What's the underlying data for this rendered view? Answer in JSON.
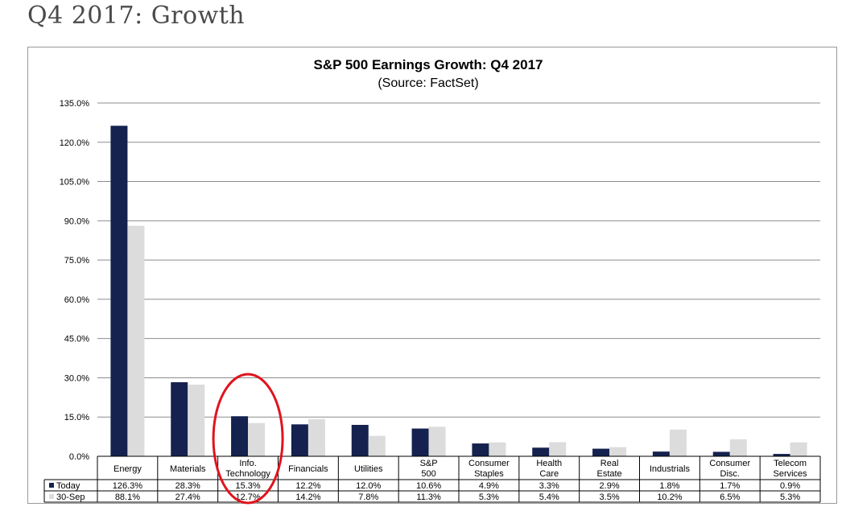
{
  "page": {
    "heading": "Q4 2017: Growth"
  },
  "chart_data": {
    "type": "bar",
    "title": "S&P 500 Earnings Growth: Q4 2017",
    "subtitle": "(Source: FactSet)",
    "categories": [
      "Energy",
      "Materials",
      "Info. Technology",
      "Financials",
      "Utilities",
      "S&P 500",
      "Consumer Staples",
      "Health Care",
      "Real Estate",
      "Industrials",
      "Consumer Disc.",
      "Telecom Services"
    ],
    "y_ticks": [
      "0.0%",
      "15.0%",
      "30.0%",
      "45.0%",
      "60.0%",
      "75.0%",
      "90.0%",
      "105.0%",
      "120.0%",
      "135.0%"
    ],
    "ylim": [
      0,
      135
    ],
    "grid": true,
    "legend": "data-table",
    "series": [
      {
        "name": "Today",
        "color": "#15224f",
        "values": [
          126.3,
          28.3,
          15.3,
          12.2,
          12.0,
          10.6,
          4.9,
          3.3,
          2.9,
          1.8,
          1.7,
          0.9
        ],
        "labels": [
          "126.3%",
          "28.3%",
          "15.3%",
          "12.2%",
          "12.0%",
          "10.6%",
          "4.9%",
          "3.3%",
          "2.9%",
          "1.8%",
          "1.7%",
          "0.9%"
        ]
      },
      {
        "name": "30-Sep",
        "color": "#dcdcdc",
        "values": [
          88.1,
          27.4,
          12.7,
          14.2,
          7.8,
          11.3,
          5.3,
          5.4,
          3.5,
          10.2,
          6.5,
          5.3
        ],
        "labels": [
          "88.1%",
          "27.4%",
          "12.7%",
          "14.2%",
          "7.8%",
          "11.3%",
          "5.3%",
          "5.4%",
          "3.5%",
          "10.2%",
          "6.5%",
          "5.3%"
        ]
      }
    ],
    "annotation": {
      "type": "circle",
      "color": "#e0141e",
      "target": "Info. Technology"
    }
  }
}
